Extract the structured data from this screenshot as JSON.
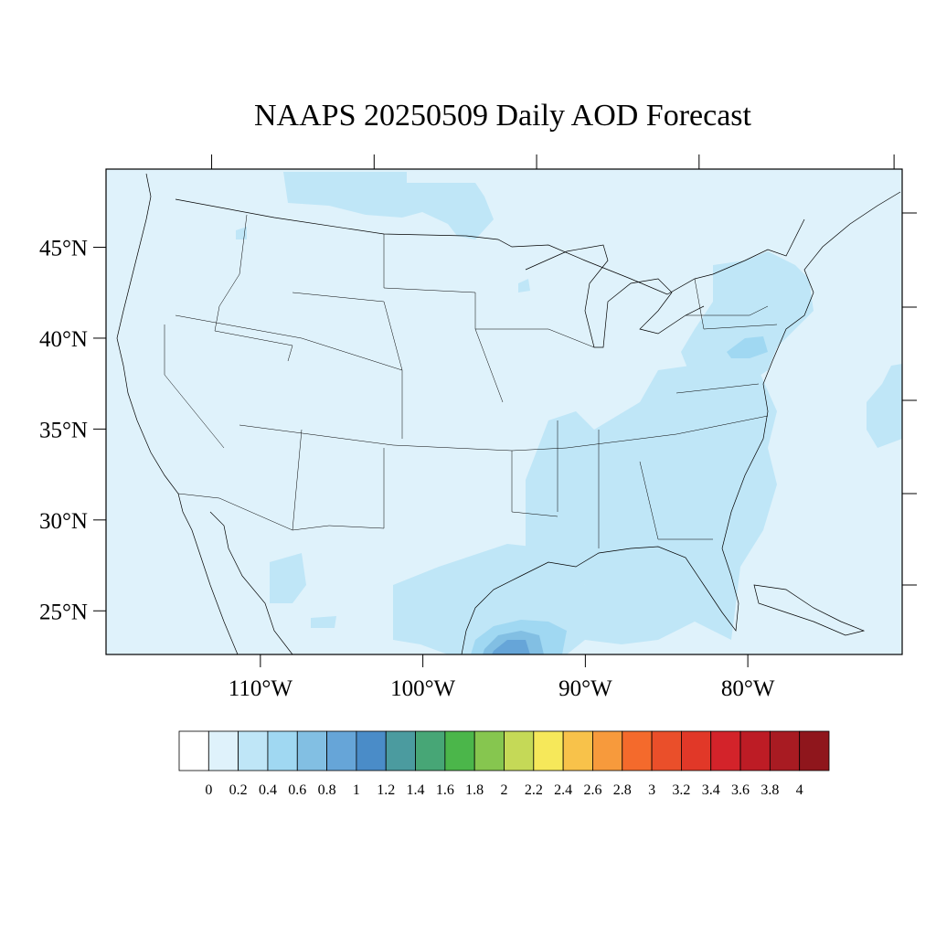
{
  "map": {
    "title": "NAAPS 20250509 Daily AOD Forecast",
    "lat_ticks": [
      {
        "label": "45°N",
        "lat": 45
      },
      {
        "label": "40°N",
        "lat": 40
      },
      {
        "label": "35°N",
        "lat": 35
      },
      {
        "label": "30°N",
        "lat": 30
      },
      {
        "label": "25°N",
        "lat": 25
      }
    ],
    "lon_ticks": [
      {
        "label": "110°W",
        "lon": -110
      },
      {
        "label": "100°W",
        "lon": -100
      },
      {
        "label": "90°W",
        "lon": -90
      },
      {
        "label": "80°W",
        "lon": -80
      }
    ],
    "extent": {
      "lon_min": -119.5,
      "lon_max": -70.5,
      "lat_min": 22.6,
      "lat_max": 49.3
    },
    "background_value_color": "#dff2fb"
  },
  "colorbar": {
    "labels": [
      "0",
      "0.2",
      "0.4",
      "0.6",
      "0.8",
      "1",
      "1.2",
      "1.4",
      "1.6",
      "1.8",
      "2",
      "2.2",
      "2.4",
      "2.6",
      "2.8",
      "3",
      "3.2",
      "3.4",
      "3.6",
      "3.8",
      "4"
    ],
    "colors": [
      "#ffffff",
      "#dff2fb",
      "#bfe6f7",
      "#a0d8f2",
      "#82bfe3",
      "#66a5d8",
      "#4a8cc8",
      "#4b9b9f",
      "#47a676",
      "#4bb64a",
      "#86c64f",
      "#c5d957",
      "#f6e85a",
      "#f8c24a",
      "#f79a3c",
      "#f46a2c",
      "#ea4f2a",
      "#e13828",
      "#d3232a",
      "#bd1c25",
      "#a81b22",
      "#8f161c"
    ]
  }
}
